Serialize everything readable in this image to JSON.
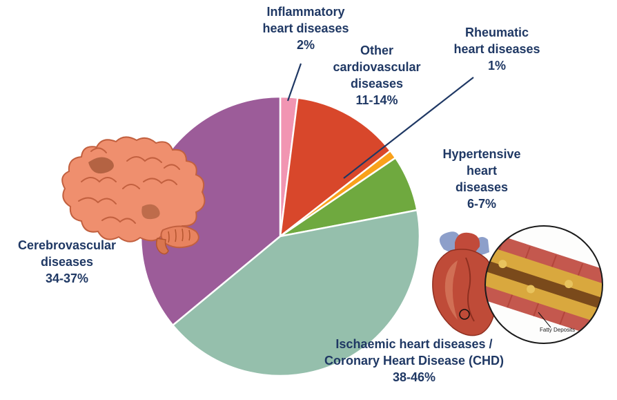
{
  "chart_data": {
    "type": "pie",
    "direction": "clockwise",
    "start_angle_deg": 0,
    "legend": false,
    "labels_outside": true,
    "slices": [
      {
        "label": "Inflammatory heart diseases",
        "value_label": "2%",
        "value_min": 2,
        "value_max": 2,
        "value": 2,
        "color": "#F195B2"
      },
      {
        "label": "Other cardiovascular diseases",
        "value_label": "11-14%",
        "value_min": 11,
        "value_max": 14,
        "value": 12.5,
        "color": "#D8472B"
      },
      {
        "label": "Rheumatic heart diseases",
        "value_label": "1%",
        "value_min": 1,
        "value_max": 1,
        "value": 1,
        "color": "#F9A11B"
      },
      {
        "label": "Hypertensive heart diseases",
        "value_label": "6-7%",
        "value_min": 6,
        "value_max": 7,
        "value": 6.5,
        "color": "#6FA93F"
      },
      {
        "label": "Ischaemic heart diseases / Coronary Heart Disease (CHD)",
        "value_label": "38-46%",
        "value_min": 38,
        "value_max": 46,
        "value": 42,
        "color": "#95BFAC"
      },
      {
        "label": "Cerebrovascular diseases",
        "value_label": "34-37%",
        "value_min": 34,
        "value_max": 37,
        "value": 36,
        "color": "#9C5C99"
      }
    ]
  },
  "labels": {
    "inflammatory": "Inflammatory\nheart diseases\n2%",
    "other": "Other\ncardiovascular\ndiseases\n11-14%",
    "rheumatic": "Rheumatic\nheart diseases\n1%",
    "hypertensive": "Hypertensive\nheart\ndiseases\n6-7%",
    "cerebrovascular": "Cerebrovascular\ndiseases\n34-37%",
    "ischaemic": "Ischaemic heart diseases /\nCoronary Heart Disease (CHD)\n38-46%",
    "fatty_deposits": "Fatty Deposits"
  },
  "style": {
    "label_color": "#1F3864",
    "leader_line_color": "#1F3864",
    "background": "#FFFFFF",
    "slice_separator_color": "#FFFFFF"
  }
}
